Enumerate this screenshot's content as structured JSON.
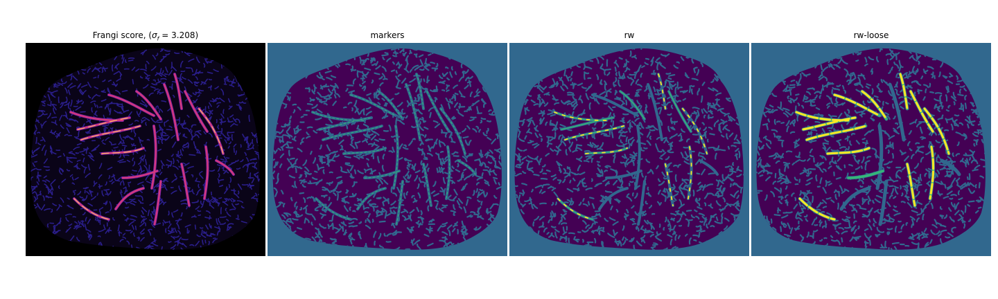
{
  "figure": {
    "panels": [
      {
        "id": "frangi",
        "title_prefix": "Frangi score, (",
        "title_sigma": "σ",
        "title_sub": "f",
        "title_suffix": " = 3.208)",
        "colormap": "magma",
        "background": "#000000"
      },
      {
        "id": "markers",
        "title": "markers",
        "colormap": "viridis",
        "background": "#31688e"
      },
      {
        "id": "rw",
        "title": "rw",
        "colormap": "viridis",
        "background": "#31688e"
      },
      {
        "id": "rw-loose",
        "title": "rw-loose",
        "colormap": "viridis",
        "background": "#31688e"
      }
    ],
    "colors": {
      "frangi_texture": "#2a1e8a",
      "frangi_vessel_low": "#7b1fa2",
      "frangi_vessel_mid": "#d63a7a",
      "frangi_vessel_high": "#fdb96a",
      "viridis_dark": "#440154",
      "viridis_blue": "#31688e",
      "viridis_teal": "#35b779",
      "viridis_yellow": "#fde725"
    }
  }
}
